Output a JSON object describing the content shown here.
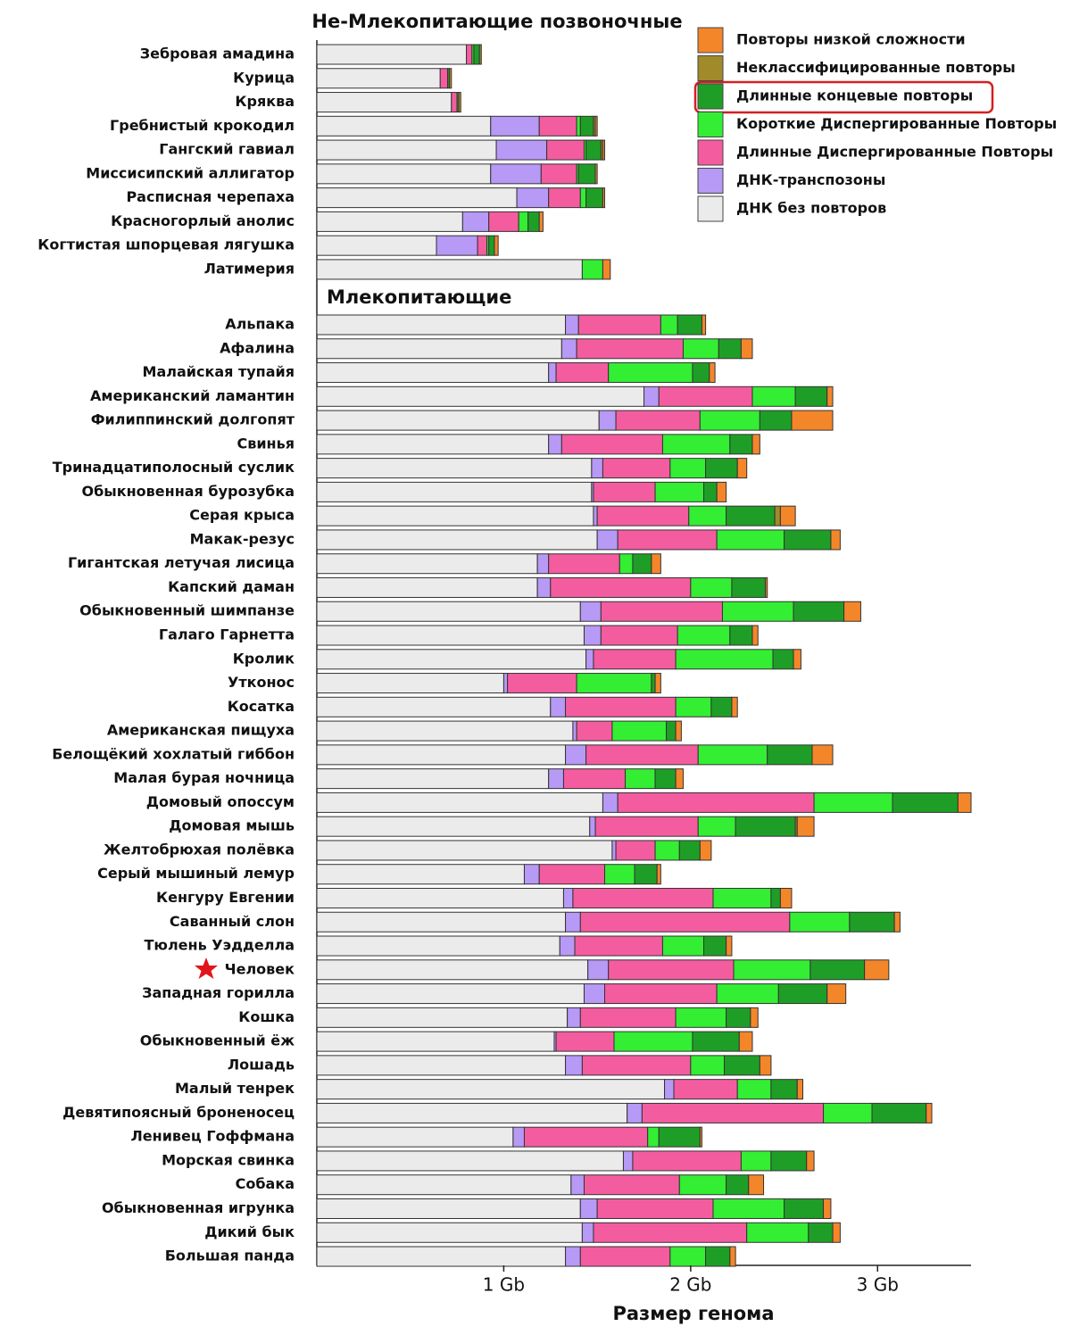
{
  "chart_data": [
    {
      "type": "stacked-bar-horizontal",
      "title": "Не-Млекопитающие позвоночные",
      "categories": [
        "Зебровая амадина",
        "Курица",
        "Кряква",
        "Гребнистый крокодил",
        "Гангский гавиал",
        "Миссисипский аллигатор",
        "Расписная черепаха",
        "Красногорлый анолис",
        "Когтистая шпорцевая лягушка",
        "Латимерия"
      ],
      "series": [
        {
          "name": "Повторы низкой сложности",
          "color": "#f4862a",
          "values": [
            0.0,
            0.01,
            0.01,
            0.01,
            0.01,
            0.01,
            0.01,
            0.02,
            0.02,
            0.04
          ]
        },
        {
          "name": "Неклассифицированные повторы",
          "color": "#a08a2a",
          "values": [
            0.01,
            0,
            0,
            0.01,
            0.01,
            0,
            0,
            0,
            0,
            0
          ]
        },
        {
          "name": "Длинные концевые повторы",
          "color": "#1f9e27",
          "values": [
            0.03,
            0.01,
            0.01,
            0.07,
            0.08,
            0.09,
            0.09,
            0.06,
            0.03,
            0
          ]
        },
        {
          "name": "Короткие Диспергированные Повторы",
          "color": "#33ee33",
          "values": [
            0.01,
            0,
            0,
            0.02,
            0.01,
            0.01,
            0.03,
            0.05,
            0.01,
            0.11
          ]
        },
        {
          "name": "Длинные Диспергированные Повторы",
          "color": "#f45ca0",
          "values": [
            0.03,
            0.04,
            0.03,
            0.2,
            0.2,
            0.19,
            0.17,
            0.16,
            0.05,
            0
          ]
        },
        {
          "name": "ДНК-транспозоны",
          "color": "#b799f6",
          "values": [
            0,
            0,
            0,
            0.26,
            0.27,
            0.27,
            0.17,
            0.14,
            0.22,
            0
          ]
        },
        {
          "name": "ДНК без повторов",
          "color": "#ebebeb",
          "values": [
            0.8,
            0.66,
            0.72,
            0.93,
            0.96,
            0.93,
            1.07,
            0.78,
            0.64,
            1.42
          ]
        }
      ],
      "xlim": [
        0,
        3.5
      ]
    },
    {
      "type": "stacked-bar-horizontal",
      "title": "Млекопитающие",
      "categories": [
        "Альпака",
        "Афалина",
        "Малайская тупайя",
        "Американский ламантин",
        "Филиппинский долгопят",
        "Свинья",
        "Тринадцатиполосный суслик",
        "Обыкновенная бурозубка",
        "Серая крыса",
        "Макак-резус",
        "Гигантская летучая лисица",
        "Капский даман",
        "Обыкновенный шимпанзе",
        "Галаго Гарнетта",
        "Кролик",
        "Утконос",
        "Косатка",
        "Американская пищуха",
        "Белощёкий хохлатый гиббон",
        "Малая бурая ночница",
        "Домовый опоссум",
        "Домовая мышь",
        "Желтобрюхая полёвка",
        "Серый мышиный лемур",
        "Кенгуру Евгении",
        "Саванный слон",
        "Тюлень Уэдделла",
        "Человек",
        "Западная горилла",
        "Кошка",
        "Обыкновенный ёж",
        "Лошадь",
        "Малый тенрек",
        "Девятипоясный броненосец",
        "Ленивец Гоффмана",
        "Морская свинка",
        "Собака",
        "Обыкновенная игрунка",
        "Дикий бык",
        "Большая панда"
      ],
      "series": [
        {
          "values": [
            0.02,
            0.06,
            0.03,
            0.03,
            0.22,
            0.04,
            0.05,
            0.05,
            0.08,
            0.05,
            0.05,
            0.01,
            0.09,
            0.03,
            0.04,
            0.03,
            0.03,
            0.03,
            0.11,
            0.04,
            0.07,
            0.09,
            0.06,
            0.02,
            0.06,
            0.03,
            0.03,
            0.13,
            0.1,
            0.04,
            0.07,
            0.06,
            0.03,
            0.03,
            0.01,
            0.04,
            0.08,
            0.04,
            0.04,
            0.03
          ]
        },
        {
          "values": [
            0,
            0,
            0,
            0,
            0,
            0,
            0,
            0,
            0.03,
            0,
            0,
            0,
            0,
            0,
            0,
            0,
            0,
            0,
            0,
            0,
            0,
            0.01,
            0,
            0,
            0,
            0,
            0,
            0,
            0,
            0,
            0,
            0,
            0,
            0,
            0,
            0,
            0,
            0,
            0,
            0
          ]
        },
        {
          "values": [
            0.13,
            0.12,
            0.09,
            0.17,
            0.17,
            0.12,
            0.17,
            0.07,
            0.26,
            0.25,
            0.1,
            0.18,
            0.27,
            0.12,
            0.11,
            0.02,
            0.11,
            0.05,
            0.24,
            0.11,
            0.35,
            0.32,
            0.11,
            0.12,
            0.05,
            0.24,
            0.12,
            0.29,
            0.26,
            0.13,
            0.25,
            0.19,
            0.14,
            0.29,
            0.22,
            0.19,
            0.12,
            0.21,
            0.13,
            0.13
          ]
        },
        {
          "values": [
            0.09,
            0.19,
            0.45,
            0.23,
            0.32,
            0.36,
            0.19,
            0.26,
            0.2,
            0.36,
            0.07,
            0.22,
            0.38,
            0.28,
            0.52,
            0.4,
            0.19,
            0.29,
            0.37,
            0.16,
            0.42,
            0.2,
            0.13,
            0.16,
            0.31,
            0.32,
            0.22,
            0.41,
            0.33,
            0.27,
            0.42,
            0.18,
            0.18,
            0.26,
            0.06,
            0.16,
            0.25,
            0.38,
            0.33,
            0.19
          ]
        },
        {
          "values": [
            0.44,
            0.57,
            0.28,
            0.5,
            0.45,
            0.54,
            0.36,
            0.33,
            0.49,
            0.53,
            0.38,
            0.75,
            0.65,
            0.41,
            0.44,
            0.37,
            0.59,
            0.19,
            0.6,
            0.33,
            1.05,
            0.55,
            0.21,
            0.35,
            0.75,
            1.12,
            0.47,
            0.67,
            0.6,
            0.51,
            0.31,
            0.58,
            0.34,
            0.97,
            0.66,
            0.58,
            0.51,
            0.62,
            0.82,
            0.48
          ]
        },
        {
          "values": [
            0.07,
            0.08,
            0.04,
            0.08,
            0.09,
            0.07,
            0.06,
            0.01,
            0.02,
            0.11,
            0.06,
            0.07,
            0.11,
            0.09,
            0.04,
            0.02,
            0.08,
            0.02,
            0.11,
            0.08,
            0.08,
            0.03,
            0.02,
            0.08,
            0.05,
            0.08,
            0.08,
            0.11,
            0.11,
            0.07,
            0.01,
            0.09,
            0.05,
            0.08,
            0.06,
            0.05,
            0.07,
            0.09,
            0.06,
            0.08
          ]
        },
        {
          "values": [
            1.33,
            1.31,
            1.24,
            1.75,
            1.51,
            1.24,
            1.47,
            1.47,
            1.48,
            1.5,
            1.18,
            1.18,
            1.41,
            1.43,
            1.44,
            1.0,
            1.25,
            1.37,
            1.33,
            1.24,
            1.53,
            1.46,
            1.58,
            1.11,
            1.32,
            1.33,
            1.3,
            1.45,
            1.43,
            1.34,
            1.27,
            1.33,
            1.86,
            1.66,
            1.05,
            1.64,
            1.36,
            1.41,
            1.42,
            1.33
          ]
        }
      ],
      "xlim": [
        0,
        3.5
      ],
      "xticks": [
        {
          "value": 1,
          "label": "1 Gb"
        },
        {
          "value": 2,
          "label": "2 Gb"
        },
        {
          "value": 3,
          "label": "3 Gb"
        }
      ],
      "xlabel": "Размер генома"
    }
  ]
}
